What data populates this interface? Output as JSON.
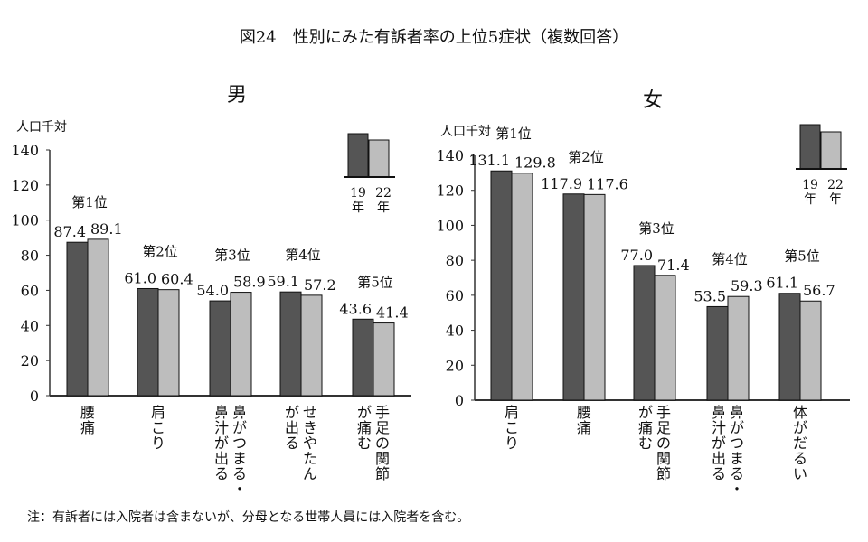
{
  "title": "図24　性別にみた有訴者率の上位5症状（複数回答）",
  "note": "注：有訴者には入院者は含まないが、分母となる世帯人員には入院者を含む。",
  "colors": {
    "y19": "#555555",
    "y22": "#bdbdbd"
  },
  "legend": {
    "y19": [
      "19",
      "年"
    ],
    "y22": [
      "22",
      "年"
    ]
  },
  "chart_data": [
    {
      "type": "bar",
      "title": "男",
      "ylabel": "人口千対",
      "ylim": [
        0,
        140
      ],
      "yticks": [
        "0",
        "20",
        "40",
        "60",
        "80",
        "100",
        "120",
        "140"
      ],
      "series_names": [
        "19年",
        "22年"
      ],
      "ranks": [
        "第1位",
        "第2位",
        "第3位",
        "第4位",
        "第5位"
      ],
      "categories": [
        [
          "腰",
          "痛"
        ],
        [
          "肩",
          "こ",
          "り"
        ],
        [
          "鼻",
          "が",
          "つ",
          "ま",
          "る",
          "・",
          "鼻",
          "汁",
          "が",
          "出",
          "る"
        ],
        [
          "せ",
          "き",
          "や",
          "た",
          "ん",
          "が",
          "出",
          "る"
        ],
        [
          "手",
          "足",
          "の",
          "関",
          "節",
          "が",
          "痛",
          "む"
        ]
      ],
      "category_cols": [
        [
          2
        ],
        [
          3
        ],
        [
          6,
          5
        ],
        [
          5,
          3
        ],
        [
          5,
          3
        ]
      ],
      "y19": [
        87.4,
        61.0,
        54.0,
        59.1,
        43.6
      ],
      "y22": [
        89.1,
        60.4,
        58.9,
        57.2,
        41.4
      ],
      "labels19": [
        "87.4",
        "61.0",
        "54.0",
        "59.1",
        "43.6"
      ],
      "labels22": [
        "89.1",
        "60.4",
        "58.9",
        "57.2",
        "41.4"
      ]
    },
    {
      "type": "bar",
      "title": "女",
      "ylabel": "人口千対",
      "ylim": [
        0,
        140
      ],
      "yticks": [
        "0",
        "20",
        "40",
        "60",
        "80",
        "100",
        "120",
        "140"
      ],
      "series_names": [
        "19年",
        "22年"
      ],
      "ranks": [
        "第1位",
        "第2位",
        "第3位",
        "第4位",
        "第5位"
      ],
      "categories": [
        [
          "肩",
          "こ",
          "り"
        ],
        [
          "腰",
          "痛"
        ],
        [
          "手",
          "足",
          "の",
          "関",
          "節",
          "が",
          "痛",
          "む"
        ],
        [
          "鼻",
          "が",
          "つ",
          "ま",
          "る",
          "・",
          "鼻",
          "汁",
          "が",
          "出",
          "る"
        ],
        [
          "体",
          "が",
          "だ",
          "る",
          "い"
        ]
      ],
      "category_cols": [
        [
          3
        ],
        [
          2
        ],
        [
          5,
          3
        ],
        [
          6,
          5
        ],
        [
          5
        ]
      ],
      "y19": [
        131.1,
        117.9,
        77.0,
        53.5,
        61.1
      ],
      "y22": [
        129.8,
        117.6,
        71.4,
        59.3,
        56.7
      ],
      "labels19": [
        "131.1",
        "117.9",
        "77.0",
        "53.5",
        "61.1"
      ],
      "labels22": [
        "129.8",
        "117.6",
        "71.4",
        "59.3",
        "56.7"
      ]
    }
  ]
}
